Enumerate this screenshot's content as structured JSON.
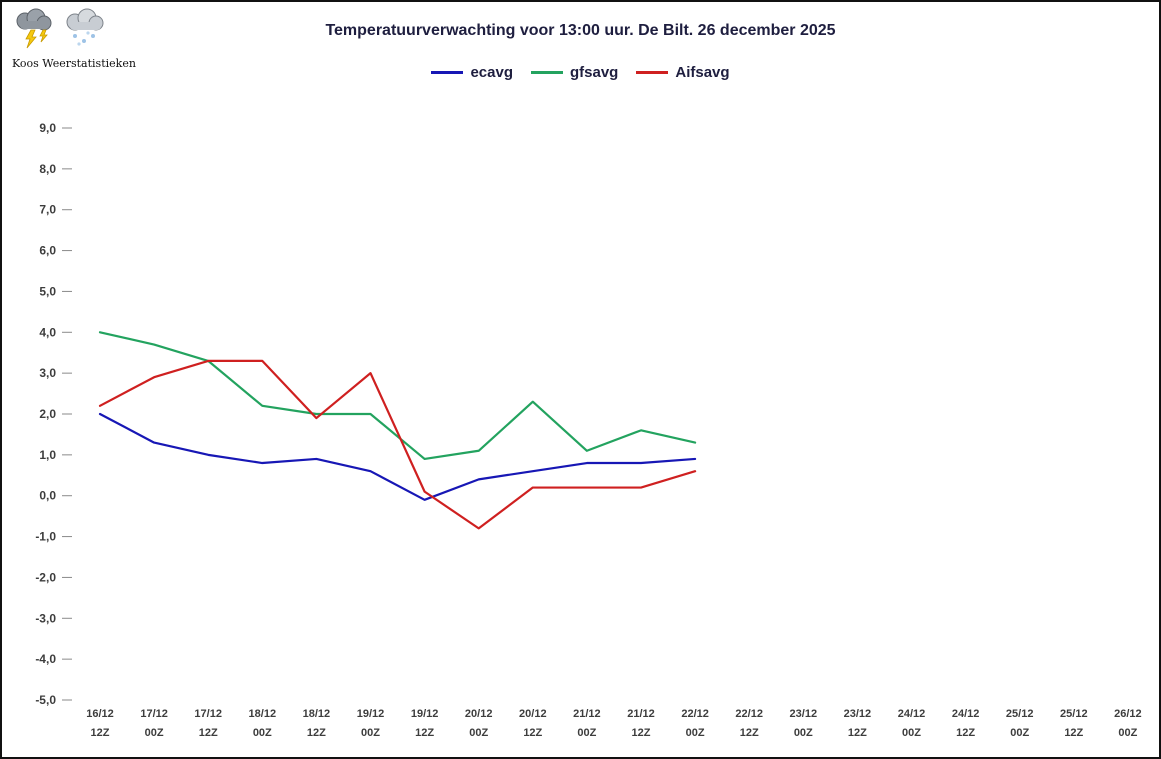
{
  "logo": {
    "text": "Koos Weerstatistieken",
    "icons": [
      "storm-cloud-icon",
      "snow-cloud-icon"
    ]
  },
  "chart_data": {
    "type": "line",
    "title": "Temperatuurverwachting voor 13:00 uur. De Bilt. 26 december 2025",
    "xlabel": "",
    "ylabel": "",
    "grid": false,
    "legend_position": "top-center",
    "ylim": [
      -5,
      9
    ],
    "ytick_step": 1,
    "ytick_labels": [
      "9,0",
      "8,0",
      "7,0",
      "6,0",
      "5,0",
      "4,0",
      "3,0",
      "2,0",
      "1,0",
      "0,0",
      "-1,0",
      "-2,0",
      "-3,0",
      "-4,0",
      "-5,0"
    ],
    "categories": [
      "16/12 12Z",
      "17/12 00Z",
      "17/12 12Z",
      "18/12 00Z",
      "18/12 12Z",
      "19/12 00Z",
      "19/12 12Z",
      "20/12 00Z",
      "20/12 12Z",
      "21/12 00Z",
      "21/12 12Z",
      "22/12 00Z",
      "22/12 12Z",
      "23/12 00Z",
      "23/12 12Z",
      "24/12 00Z",
      "24/12 12Z",
      "25/12 00Z",
      "25/12 12Z",
      "26/12 00Z"
    ],
    "series": [
      {
        "name": "ecavg",
        "color": "#1717b5",
        "values": [
          2.0,
          1.3,
          1.0,
          0.8,
          0.9,
          0.6,
          -0.1,
          0.4,
          0.6,
          0.8,
          0.8,
          0.9,
          null,
          null,
          null,
          null,
          null,
          null,
          null,
          null
        ]
      },
      {
        "name": "gfsavg",
        "color": "#23a35f",
        "values": [
          4.0,
          3.7,
          3.3,
          2.2,
          2.0,
          2.0,
          0.9,
          1.1,
          2.3,
          1.1,
          1.6,
          1.3,
          null,
          null,
          null,
          null,
          null,
          null,
          null,
          null
        ]
      },
      {
        "name": "Aifsavg",
        "color": "#cf2020",
        "values": [
          2.2,
          2.9,
          3.3,
          3.3,
          1.9,
          3.0,
          0.1,
          -0.8,
          0.2,
          0.2,
          0.2,
          0.6,
          null,
          null,
          null,
          null,
          null,
          null,
          null,
          null
        ]
      }
    ]
  }
}
